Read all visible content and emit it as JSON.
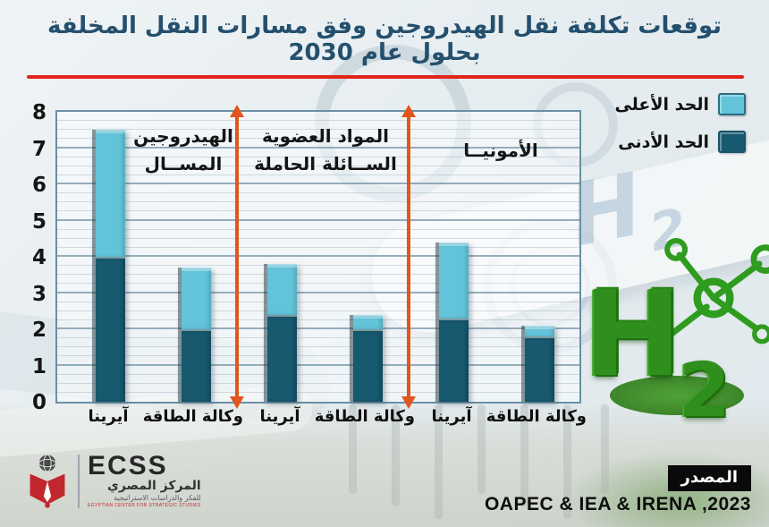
{
  "header": {
    "title": "توقعات تكلفة نقل الهيدروجين وفق مسارات النقل المخلفة بحلول عام 2030"
  },
  "colors": {
    "title": "#24506e",
    "divider_red": "#e3241b",
    "arrow_orange": "#e0561d",
    "bar_high": "#63c3d9",
    "bar_low": "#175a70",
    "grass_green": "#2f8f1d"
  },
  "legend": {
    "items": [
      {
        "label": "الحد الأعلى",
        "color": "#63c3d9"
      },
      {
        "label": "الحد الأدنى",
        "color": "#175a70"
      }
    ]
  },
  "chart_data": {
    "type": "bar",
    "subtype": "stacked-range",
    "title": "توقعات تكلفة نقل الهيدروجين وفق مسارات النقل المخلفة بحلول عام 2030",
    "xlabel": "",
    "ylabel": "",
    "ylim": [
      0,
      8
    ],
    "yticks": [
      0,
      1,
      2,
      3,
      4,
      5,
      6,
      7,
      8
    ],
    "grid": "horizontal",
    "legend_position": "top-right",
    "categories": [
      "آيرينا",
      "وكالة الطاقة",
      "آيرينا",
      "وكالة الطاقة",
      "آيرينا",
      "وكالة الطاقة"
    ],
    "groups": [
      {
        "label": "الهيدروجين المســال",
        "label_lines": [
          "الهيدروجين",
          "المســال"
        ],
        "bars": [
          0,
          1
        ]
      },
      {
        "label": "المواد العضوية السائلة الحاملة",
        "label_lines": [
          "المواد العضوية",
          "الســائلة الحاملة"
        ],
        "bars": [
          2,
          3
        ]
      },
      {
        "label": "الأمونيــا",
        "label_lines": [
          "الأمونيــا"
        ],
        "bars": [
          4,
          5
        ]
      }
    ],
    "series": [
      {
        "name": "الحد الأدنى",
        "color": "#175a70",
        "values": [
          4.0,
          2.0,
          2.4,
          2.0,
          2.3,
          1.8
        ]
      },
      {
        "name": "الحد الأعلى",
        "color": "#63c3d9",
        "values": [
          7.5,
          3.7,
          3.8,
          2.4,
          4.4,
          2.1
        ]
      }
    ]
  },
  "decor": {
    "watermark_main": "H",
    "watermark_sub": "2",
    "grass_main": "H",
    "grass_sub": "2"
  },
  "footer": {
    "source_badge": "المصدر",
    "source_text": "OAPEC & IEA & IRENA ,2023",
    "logo": {
      "acronym": "ECSS",
      "name_ar": "المركز المصري",
      "tagline_ar": "للفكر والدراسات الاستراتيجية",
      "tagline_en": "EGYPTIAN CENTER FOR STRATEGIC STUDIES"
    }
  }
}
